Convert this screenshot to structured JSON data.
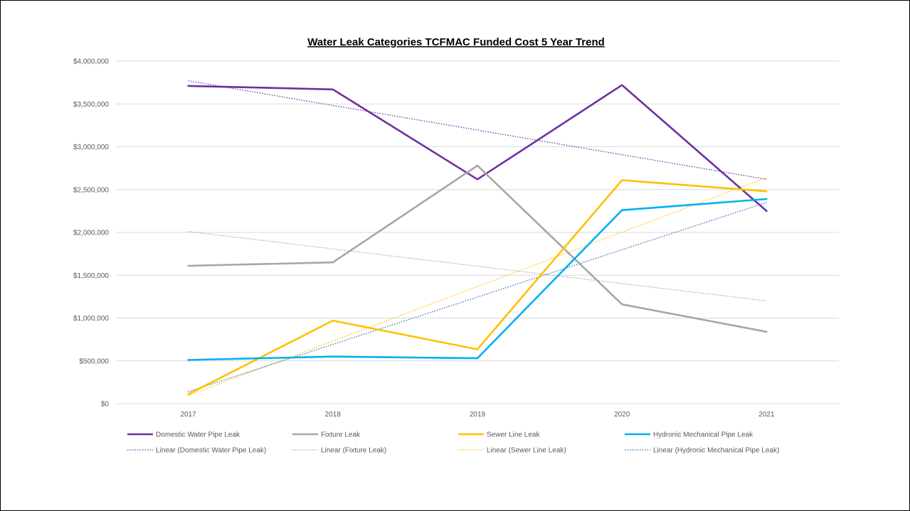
{
  "chart_data": {
    "type": "line",
    "title": "Water Leak Categories TCFMAC Funded Cost 5 Year Trend",
    "xlabel": "",
    "ylabel": "",
    "categories": [
      "2017",
      "2018",
      "2019",
      "2020",
      "2021"
    ],
    "ylim": [
      0,
      4000000
    ],
    "y_ticks": [
      0,
      500000,
      1000000,
      1500000,
      2000000,
      2500000,
      3000000,
      3500000,
      4000000
    ],
    "y_tick_labels": [
      "$0",
      "$500,000",
      "$1,000,000",
      "$1,500,000",
      "$2,000,000",
      "$2,500,000",
      "$3,000,000",
      "$3,500,000",
      "$4,000,000"
    ],
    "grid": true,
    "legend_position": "bottom",
    "series": [
      {
        "name": "Domestic Water Pipe Leak",
        "color": "#7030a0",
        "values": [
          3710000,
          3670000,
          2620000,
          3720000,
          2250000
        ]
      },
      {
        "name": "Fixture Leak",
        "color": "#a6a6a6",
        "values": [
          1610000,
          1650000,
          2780000,
          1160000,
          840000
        ]
      },
      {
        "name": "Sewer Line Leak",
        "color": "#ffc000",
        "values": [
          110000,
          970000,
          635000,
          2610000,
          2480000
        ]
      },
      {
        "name": "Hydronic Mechanical Pipe Leak",
        "color": "#00b0f0",
        "values": [
          510000,
          550000,
          530000,
          2260000,
          2390000
        ]
      }
    ],
    "trendlines": [
      {
        "name": "Linear (Domestic Water Pipe Leak)",
        "color": "#7030a0",
        "start": 3770000,
        "end": 2620000
      },
      {
        "name": "Linear (Fixture Leak)",
        "color": "#a6a6a6",
        "start": 2010000,
        "end": 1200000
      },
      {
        "name": "Linear (Sewer Line Leak)",
        "color": "#ffc000",
        "start": 95000,
        "end": 2640000
      },
      {
        "name": "Linear (Hydronic Mechanical Pipe Leak)",
        "color": "#2e75b6",
        "start": 140000,
        "end": 2350000
      }
    ]
  }
}
